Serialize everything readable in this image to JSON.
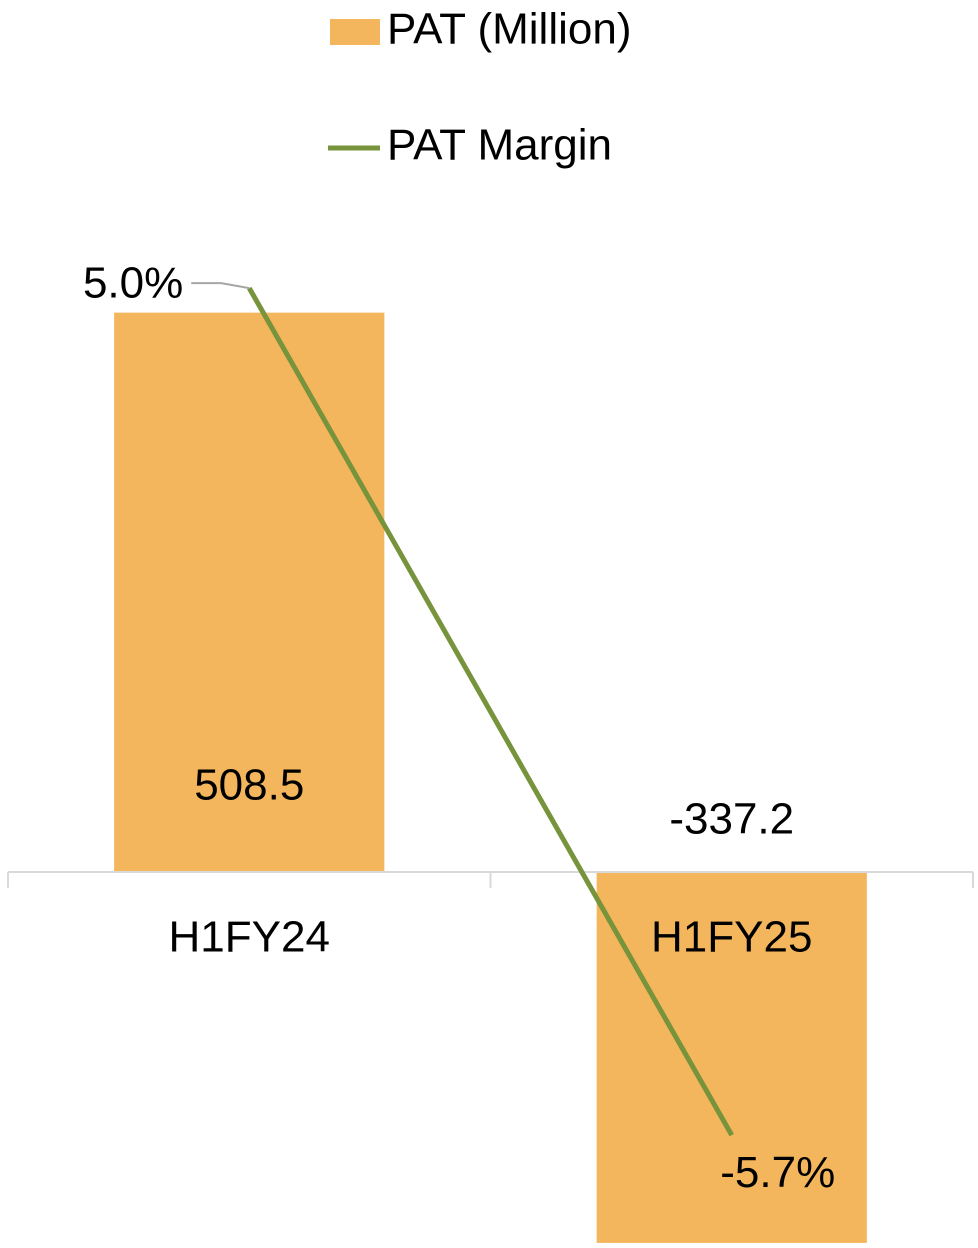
{
  "chart_data": {
    "type": "combo",
    "categories": [
      "H1FY24",
      "H1FY25"
    ],
    "series": [
      {
        "name": "PAT (Million)",
        "type": "bar",
        "color": "#F4B65C",
        "values": [
          508.5,
          -337.2
        ]
      },
      {
        "name": "PAT Margin",
        "type": "line",
        "axis": "y2",
        "color": "#77933C",
        "values": [
          5.0,
          -5.7
        ],
        "value_labels": [
          "5.0%",
          "-5.7%"
        ]
      }
    ],
    "ylim": [
      -340,
      610
    ],
    "y2lim": [
      -7.1,
      6.1
    ],
    "legend": "top"
  }
}
